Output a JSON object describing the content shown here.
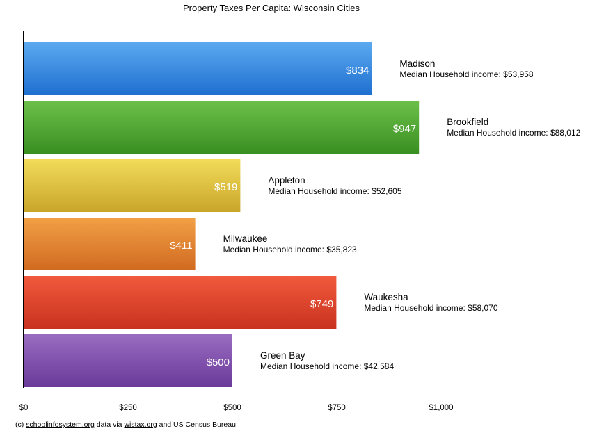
{
  "chart_data": {
    "type": "bar",
    "orientation": "horizontal",
    "title": "Property Taxes Per Capita: Wisconsin Cities",
    "categories": [
      "Madison",
      "Brookfield",
      "Appleton",
      "Milwaukee",
      "Waukesha",
      "Green Bay"
    ],
    "values": [
      834,
      947,
      519,
      411,
      749,
      500
    ],
    "value_labels": [
      "$834",
      "$947",
      "$519",
      "$411",
      "$749",
      "$500"
    ],
    "annotations": [
      "Median Household income: $53,958",
      "Median Household income: $88,012",
      "Median Household income: $52,605",
      "Median Household income: $35,823",
      "Median Household income: $58,070",
      "Median Household income: $42,584"
    ],
    "colors": [
      [
        "#5aa9f0",
        "#1f6fd0"
      ],
      [
        "#6cc04a",
        "#3a8f22"
      ],
      [
        "#f2dc5a",
        "#c9a52a"
      ],
      [
        "#f2a046",
        "#d06a20"
      ],
      [
        "#f25a3c",
        "#c8321f"
      ],
      [
        "#9a6cc0",
        "#6a3a9a"
      ]
    ],
    "xlim": [
      0,
      1000
    ],
    "x_ticks": [
      0,
      250,
      500,
      750,
      1000
    ],
    "x_tick_labels": [
      "$0",
      "$250",
      "$500",
      "$750",
      "$1,000"
    ],
    "grid": false,
    "legend": "none"
  },
  "source": {
    "prefix": "(c) ",
    "link1": "schoolinfosystem.org",
    "middle": " data via ",
    "link2": "wistax.org",
    "suffix": " and US Census Bureau"
  }
}
